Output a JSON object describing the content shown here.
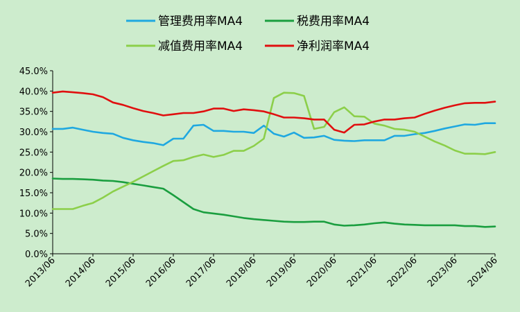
{
  "chart_data": {
    "type": "line",
    "title": "",
    "xlabel": "",
    "ylabel": "",
    "ylim": [
      0,
      45
    ],
    "y_ticks": [
      "0.0%",
      "5.0%",
      "10.0%",
      "15.0%",
      "20.0%",
      "25.0%",
      "30.0%",
      "35.0%",
      "40.0%",
      "45.0%"
    ],
    "x_ticks": [
      "2013/06",
      "2014/06",
      "2015/06",
      "2016/06",
      "2017/06",
      "2018/06",
      "2019/06",
      "2020/06",
      "2021/06",
      "2022/06",
      "2023/06",
      "2024/06"
    ],
    "grid": false,
    "legend_position": "top-center",
    "series": [
      {
        "name": "管理费用率MA4",
        "color": "#1fa8e0",
        "values": [
          30.7,
          30.7,
          31.0,
          30.5,
          30.0,
          29.7,
          29.5,
          28.5,
          27.9,
          27.5,
          27.2,
          26.7,
          28.3,
          28.3,
          31.5,
          31.7,
          30.2,
          30.2,
          30.0,
          30.0,
          29.7,
          31.5,
          29.5,
          28.8,
          29.8,
          28.5,
          28.6,
          29.0,
          28.0,
          27.8,
          27.7,
          27.9,
          27.9,
          27.9,
          29.0,
          29.0,
          29.4,
          29.7,
          30.2,
          30.8,
          31.3,
          31.8,
          31.7,
          32.1,
          32.1
        ]
      },
      {
        "name": "税费用率MA4",
        "color": "#1a9e3f",
        "values": [
          18.5,
          18.4,
          18.4,
          18.3,
          18.2,
          18.0,
          17.9,
          17.6,
          17.2,
          16.8,
          16.4,
          16.0,
          14.4,
          12.7,
          11.0,
          10.2,
          9.9,
          9.6,
          9.2,
          8.8,
          8.5,
          8.3,
          8.1,
          7.9,
          7.8,
          7.8,
          7.9,
          7.9,
          7.2,
          6.9,
          7.0,
          7.2,
          7.5,
          7.7,
          7.4,
          7.2,
          7.1,
          7.0,
          7.0,
          7.0,
          7.0,
          6.8,
          6.8,
          6.6,
          6.7
        ]
      },
      {
        "name": "减值费用率MA4",
        "color": "#8ccf4a",
        "values": [
          11.0,
          11.0,
          11.0,
          11.8,
          12.5,
          13.8,
          15.3,
          16.5,
          17.7,
          19.0,
          20.3,
          21.6,
          22.8,
          23.0,
          23.8,
          24.4,
          23.8,
          24.3,
          25.3,
          25.3,
          26.5,
          28.3,
          38.3,
          39.6,
          39.5,
          38.8,
          30.7,
          31.2,
          34.8,
          36.0,
          33.8,
          33.7,
          32.0,
          31.5,
          30.7,
          30.5,
          30.0,
          28.8,
          27.6,
          26.6,
          25.4,
          24.6,
          24.6,
          24.5,
          25.0
        ]
      },
      {
        "name": "净利润率MA4",
        "color": "#e00f0f",
        "values": [
          39.6,
          39.9,
          39.7,
          39.5,
          39.2,
          38.5,
          37.2,
          36.6,
          35.8,
          35.1,
          34.6,
          34.0,
          34.3,
          34.6,
          34.6,
          35.0,
          35.7,
          35.7,
          35.1,
          35.5,
          35.3,
          35.0,
          34.3,
          33.5,
          33.5,
          33.3,
          33.0,
          33.0,
          30.5,
          29.8,
          31.7,
          31.8,
          32.5,
          33.0,
          33.0,
          33.3,
          33.5,
          34.4,
          35.2,
          35.9,
          36.5,
          37.0,
          37.1,
          37.1,
          37.4
        ]
      }
    ]
  }
}
